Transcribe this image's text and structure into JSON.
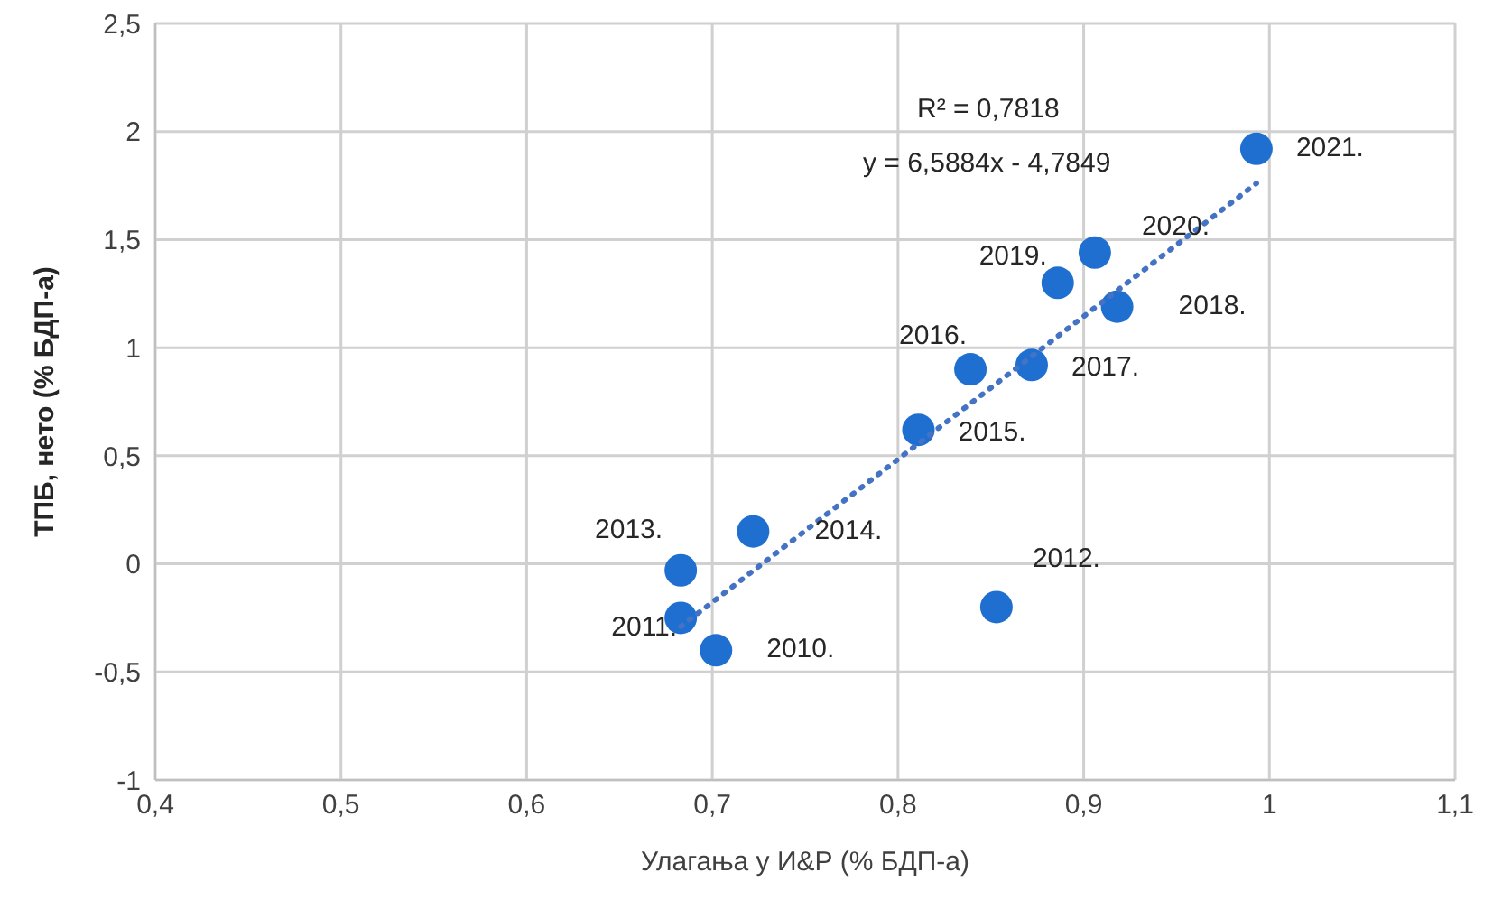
{
  "chart_data": {
    "type": "scatter",
    "xlabel": "Улагања у И&Р (% БДП-а)",
    "ylabel": "ТПБ, нето (% БДП-а)",
    "xlim": [
      0.4,
      1.1
    ],
    "xticks": [
      {
        "value": 0.4,
        "label": "0,4"
      },
      {
        "value": 0.5,
        "label": "0,5"
      },
      {
        "value": 0.6,
        "label": "0,6"
      },
      {
        "value": 0.7,
        "label": "0,7"
      },
      {
        "value": 0.8,
        "label": "0,8"
      },
      {
        "value": 0.9,
        "label": "0,9"
      },
      {
        "value": 1,
        "label": "1"
      },
      {
        "value": 1.1,
        "label": "1,1"
      }
    ],
    "ylim": [
      -1,
      2.5
    ],
    "yticks": [
      {
        "value": -1,
        "label": "-1"
      },
      {
        "value": -0.5,
        "label": "-0,5"
      },
      {
        "value": 0,
        "label": "0"
      },
      {
        "value": 0.5,
        "label": "0,5"
      },
      {
        "value": 1,
        "label": "1"
      },
      {
        "value": 1.5,
        "label": "1,5"
      },
      {
        "value": 2,
        "label": "2"
      },
      {
        "value": 2.5,
        "label": "2,5"
      }
    ],
    "grid": true,
    "marker": "circle",
    "series": [
      {
        "color": "#1f6fd0",
        "x": [
          0.702,
          0.683,
          0.853,
          0.683,
          0.722,
          0.811,
          0.839,
          0.872,
          0.918,
          0.886,
          0.906,
          0.993
        ],
        "values": [
          -0.4,
          -0.25,
          -0.2,
          -0.03,
          0.15,
          0.62,
          0.9,
          0.92,
          1.19,
          1.3,
          1.44,
          1.92
        ]
      },
      {
        "type": "line",
        "color": "#4472c4",
        "line_style": "dotted",
        "marker": "none",
        "x": [
          0.683,
          0.993
        ],
        "values": [
          -0.29,
          1.76
        ]
      }
    ],
    "annotations": [
      "R² = 0,7818",
      "y = 6,5884x - 4,7849",
      {
        "text": "2010.",
        "x": 0.702,
        "y": -0.4
      },
      {
        "text": "2011.",
        "x": 0.683,
        "y": -0.25
      },
      {
        "text": "2012.",
        "x": 0.853,
        "y": -0.2
      },
      {
        "text": "2013.",
        "x": 0.683,
        "y": -0.03
      },
      {
        "text": "2014.",
        "x": 0.722,
        "y": 0.15
      },
      {
        "text": "2015.",
        "x": 0.811,
        "y": 0.62
      },
      {
        "text": "2016.",
        "x": 0.839,
        "y": 0.9
      },
      {
        "text": "2017.",
        "x": 0.872,
        "y": 0.92
      },
      {
        "text": "2018.",
        "x": 0.918,
        "y": 1.19
      },
      {
        "text": "2019.",
        "x": 0.886,
        "y": 1.3
      },
      {
        "text": "2020.",
        "x": 0.906,
        "y": 1.44
      },
      {
        "text": "2021.",
        "x": 0.993,
        "y": 1.92
      }
    ]
  }
}
